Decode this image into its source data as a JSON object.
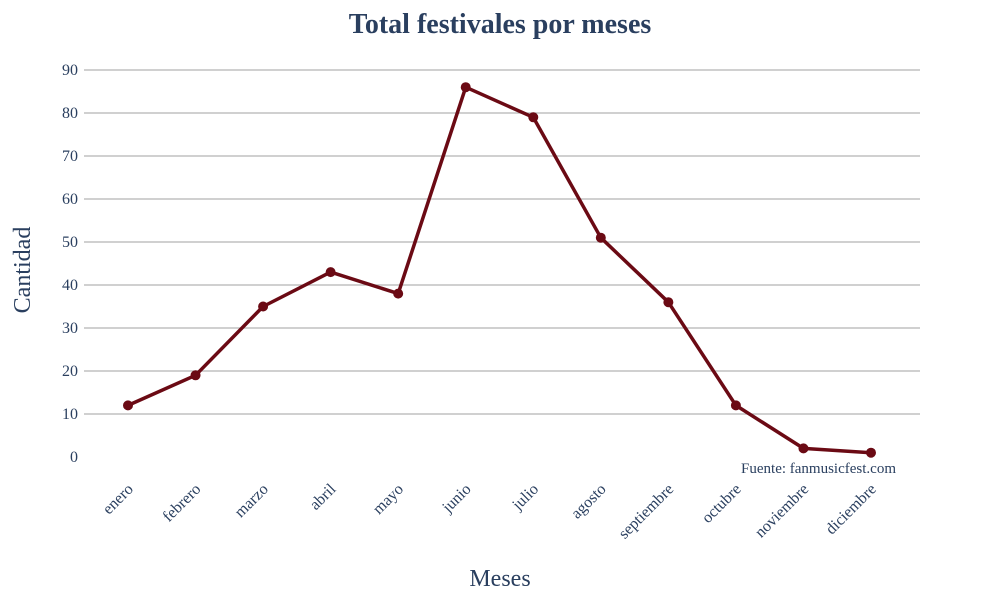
{
  "chart_data": {
    "type": "line",
    "title": "Total festivales por meses",
    "xlabel": "Meses",
    "ylabel": "Cantidad",
    "categories": [
      "enero",
      "febrero",
      "marzo",
      "abril",
      "mayo",
      "junio",
      "julio",
      "agosto",
      "septiembre",
      "octubre",
      "noviembre",
      "diciembre"
    ],
    "series": [
      {
        "values": [
          12,
          19,
          35,
          43,
          38,
          86,
          79,
          51,
          36,
          12,
          2,
          1
        ]
      }
    ],
    "ylim": [
      0,
      90
    ],
    "yticks": [
      0,
      10,
      20,
      30,
      40,
      50,
      60,
      70,
      80,
      90
    ],
    "grid": true,
    "legend": "none",
    "line_color": "#6b0a14",
    "annotation": "Fuente: fanmusicfest.com"
  }
}
